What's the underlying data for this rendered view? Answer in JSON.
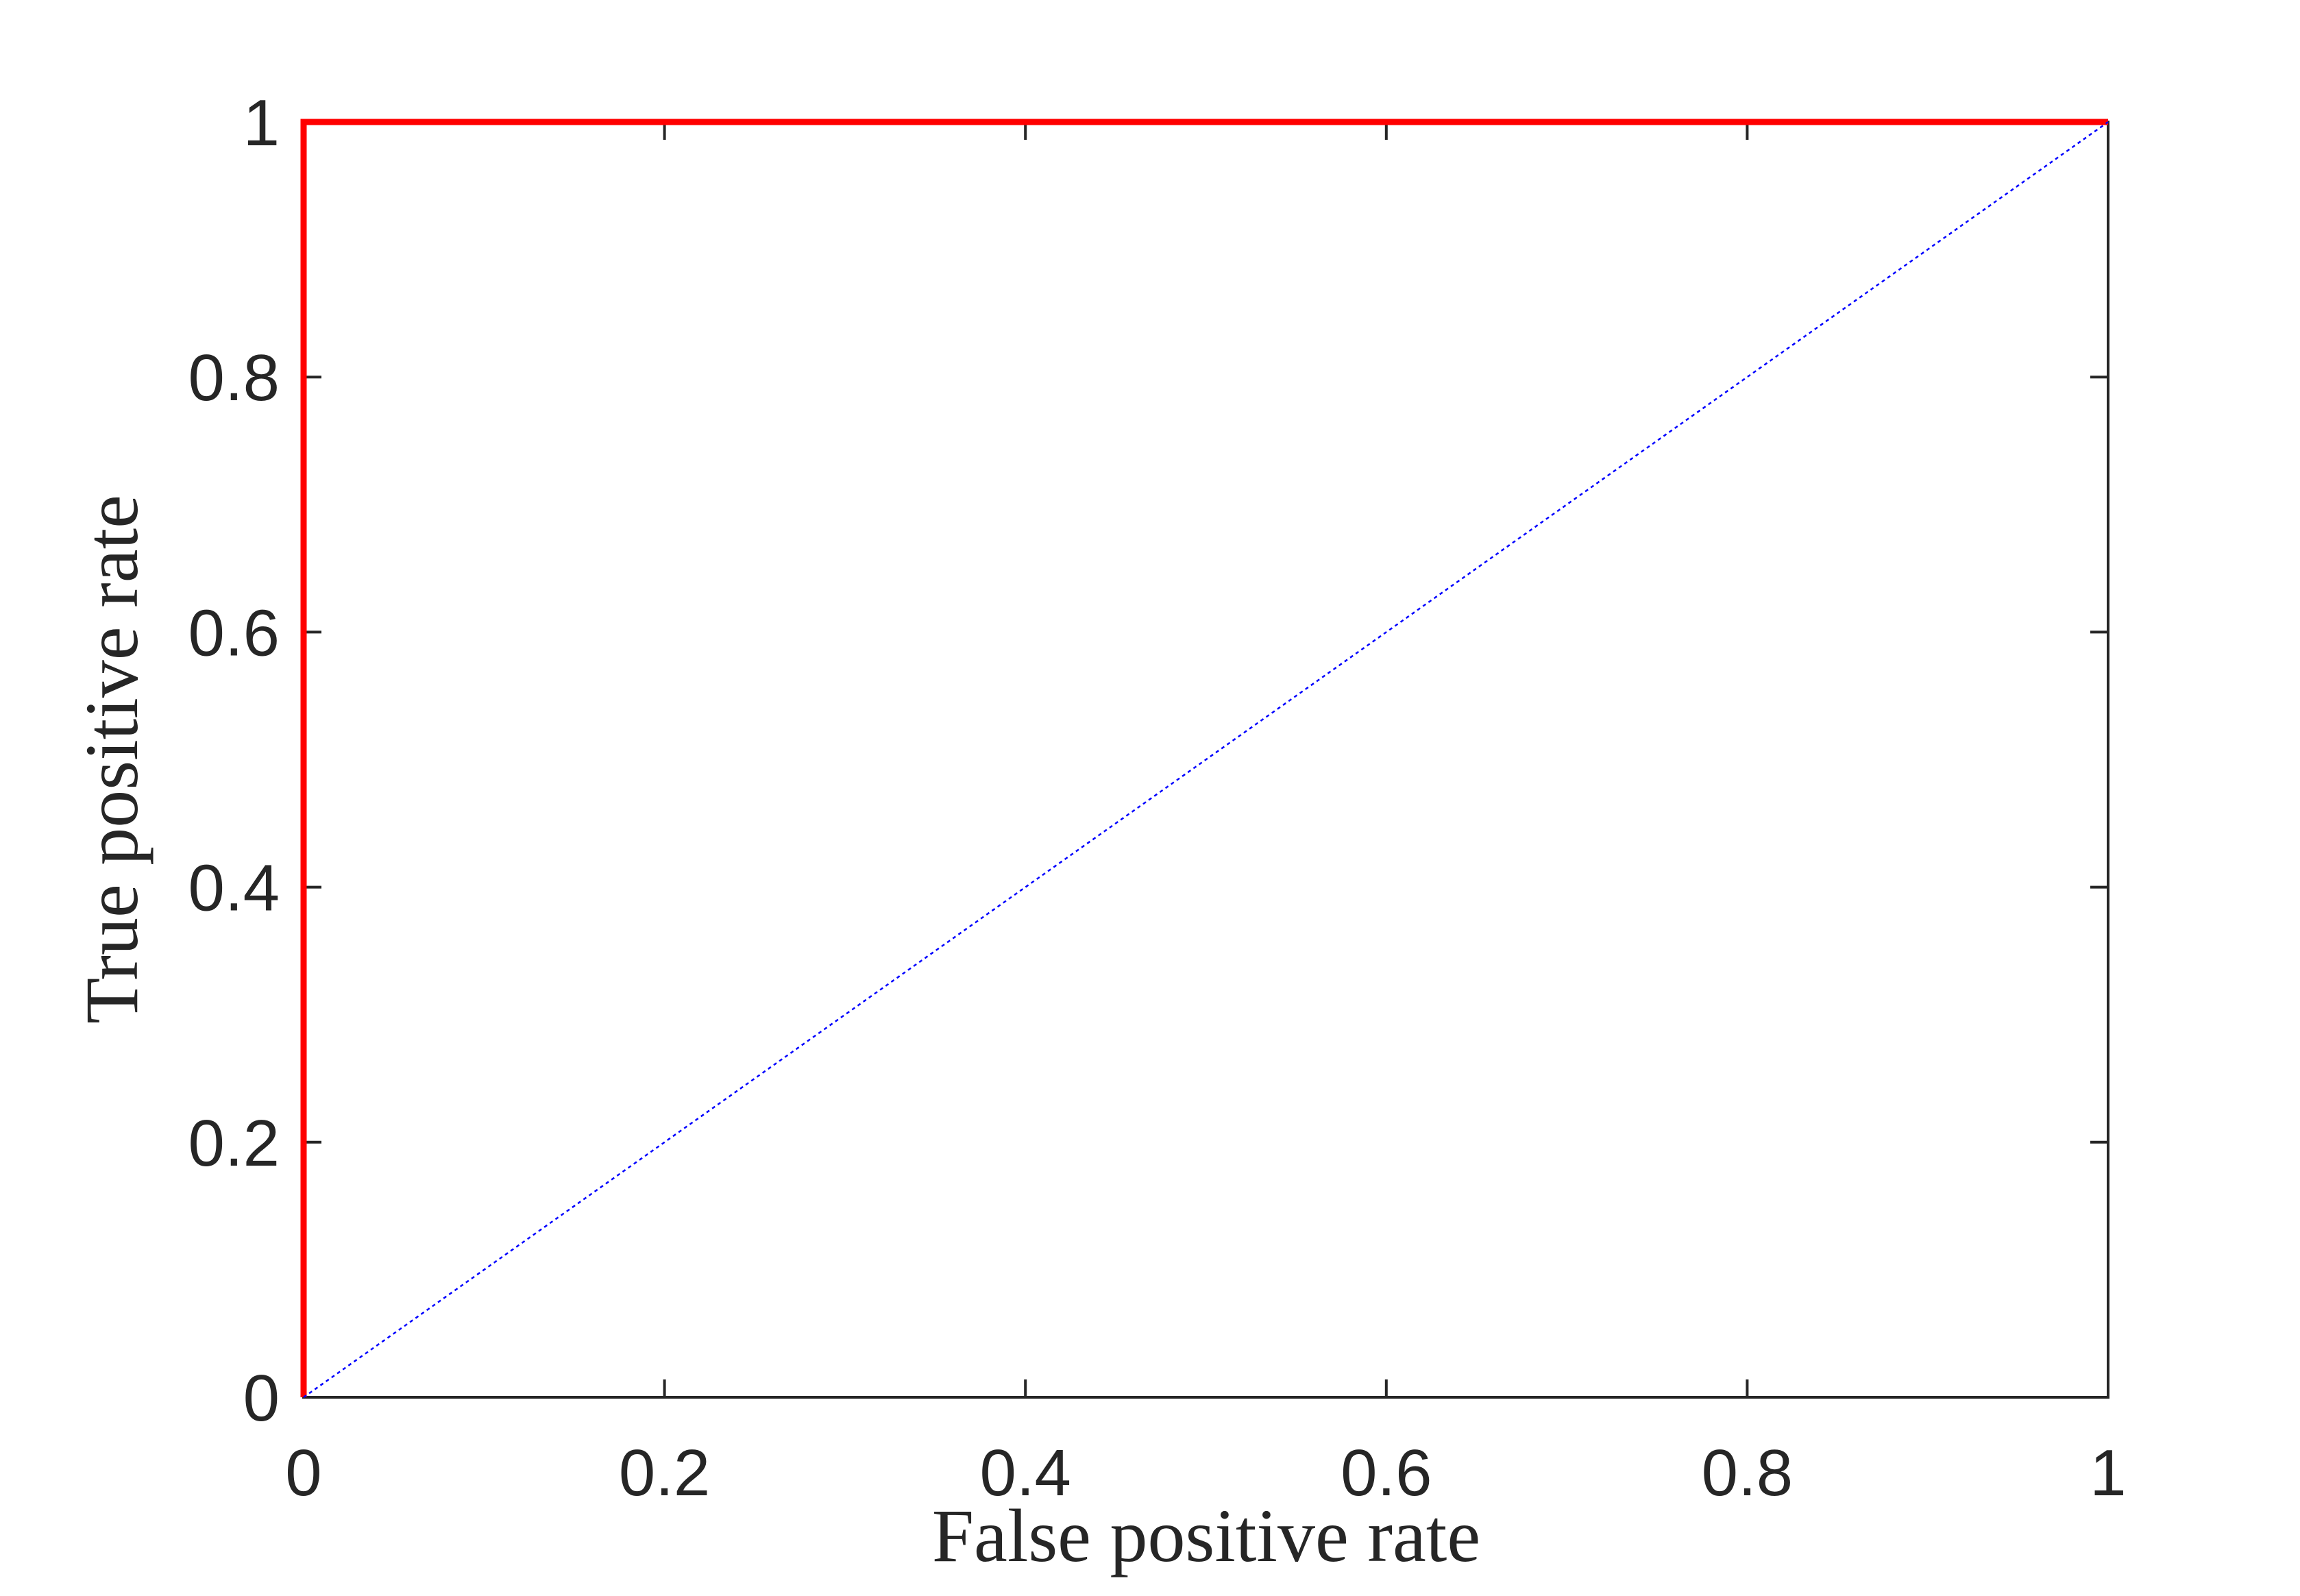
{
  "chart_data": {
    "type": "line",
    "xlabel": "False positive rate",
    "ylabel": "True positive rate",
    "series": [
      {
        "color": "#ff0000",
        "x": [
          0,
          0,
          1
        ],
        "y": [
          0,
          1,
          1
        ],
        "style": "solid"
      },
      {
        "color": "#0000ff",
        "x": [
          0,
          1
        ],
        "y": [
          0,
          1
        ],
        "style": "dotted"
      }
    ],
    "xlim": [
      0,
      1
    ],
    "ylim": [
      0,
      1
    ],
    "xticks": [
      0,
      0.2,
      0.4,
      0.6,
      0.8,
      1
    ],
    "yticks": [
      0,
      0.2,
      0.4,
      0.6,
      0.8,
      1
    ],
    "grid": false
  }
}
